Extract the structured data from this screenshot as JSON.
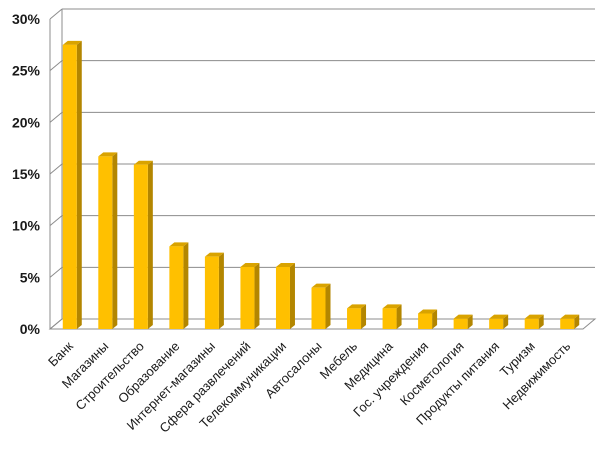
{
  "chart_data": {
    "type": "bar",
    "categories": [
      "Банк",
      "Магазины",
      "Строительство",
      "Образование",
      "Интернет-магазины",
      "Сфера развлечений",
      "Телекоммуникации",
      "Автосалоны",
      "Мебель",
      "Медицина",
      "Гос. учреждения",
      "Косметология",
      "Продукты питания",
      "Туризм",
      "Недвижимость"
    ],
    "values": [
      27.5,
      16.7,
      15.9,
      8.0,
      7.0,
      6.0,
      6.0,
      4.0,
      2.0,
      2.0,
      1.5,
      1.0,
      1.0,
      1.0,
      1.0
    ],
    "yticks": [
      "0%",
      "5%",
      "10%",
      "15%",
      "20%",
      "25%",
      "30%"
    ],
    "ylim": [
      0,
      30
    ],
    "grid": true,
    "bar_color": "#FFC000",
    "bar_side_color": "#B38600",
    "bar_top_color": "#D9A300"
  }
}
